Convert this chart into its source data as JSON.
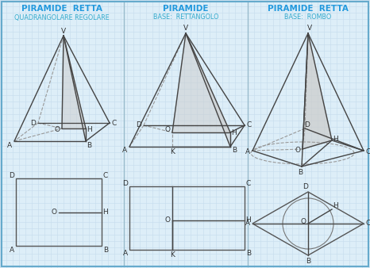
{
  "bg_color": "#ddeef8",
  "grid_color": "#c5dced",
  "border_color": "#66aacc",
  "title1": "PIRAMIDE  RETTA",
  "sub1": "QUADRANGOLARE REGOLARE",
  "title2": "PIRAMIDE",
  "sub2": "BASE:  RETTANGOLO",
  "title3": "PIRAMIDE  RETTA",
  "sub3": "BASE:  ROMBO",
  "title_color": "#2299dd",
  "sub_color": "#33aacc",
  "line_color": "#444444",
  "dashed_color": "#999999",
  "fill_color": "#cccccc",
  "fill_alpha": 0.4,
  "divider_color": "#99bbcc"
}
